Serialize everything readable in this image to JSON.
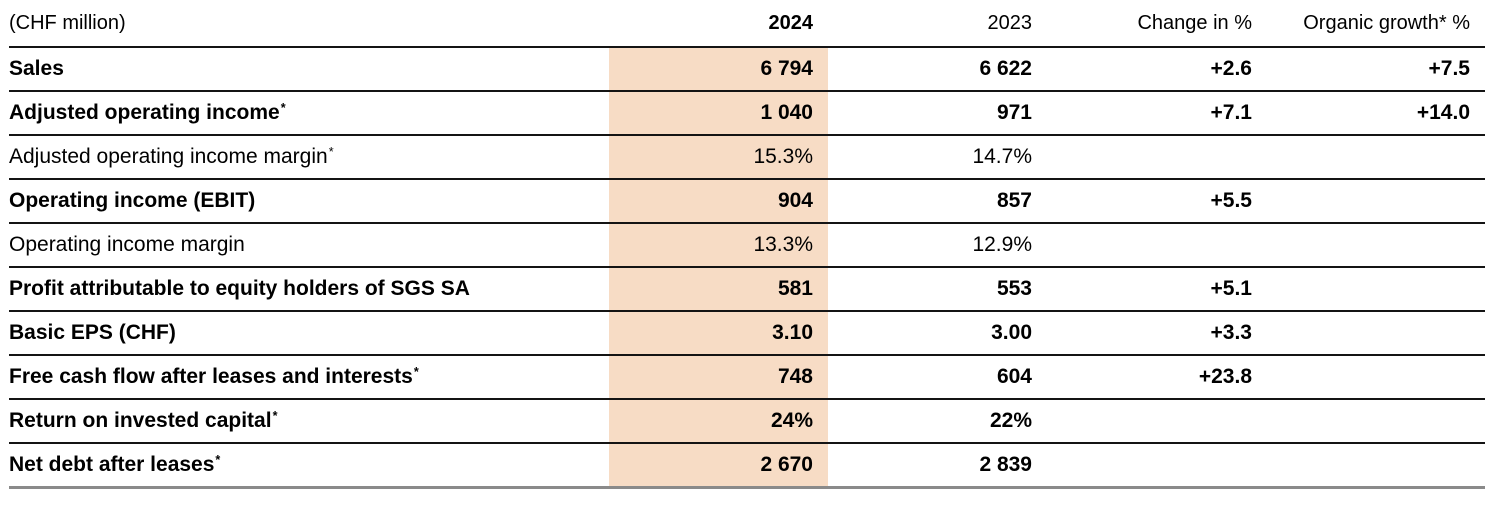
{
  "table": {
    "unit_label": "(CHF million)",
    "columns": {
      "y2024": "2024",
      "y2023": "2023",
      "change": "Change in %",
      "organic": "Organic growth* %"
    },
    "highlight_color": "#f7dcc5",
    "rows": [
      {
        "label": "Sales",
        "bold": true,
        "y2024": "6 794",
        "y2023": "6 622",
        "change": "+2.6",
        "organic": "+7.5"
      },
      {
        "label": "Adjusted operating income*",
        "bold": true,
        "y2024": "1 040",
        "y2023": "971",
        "change": "+7.1",
        "organic": "+14.0"
      },
      {
        "label": "Adjusted operating income margin*",
        "bold": false,
        "y2024": "15.3%",
        "y2023": "14.7%",
        "change": "",
        "organic": ""
      },
      {
        "label": "Operating income (EBIT)",
        "bold": true,
        "y2024": "904",
        "y2023": "857",
        "change": "+5.5",
        "organic": ""
      },
      {
        "label": "Operating income margin",
        "bold": false,
        "y2024": "13.3%",
        "y2023": "12.9%",
        "change": "",
        "organic": ""
      },
      {
        "label": "Profit attributable to equity holders of SGS SA",
        "bold": true,
        "y2024": "581",
        "y2023": "553",
        "change": "+5.1",
        "organic": ""
      },
      {
        "label": "Basic EPS (CHF)",
        "bold": true,
        "y2024": "3.10",
        "y2023": "3.00",
        "change": "+3.3",
        "organic": ""
      },
      {
        "label": "Free cash flow after leases and interests*",
        "bold": true,
        "y2024": "748",
        "y2023": "604",
        "change": "+23.8",
        "organic": ""
      },
      {
        "label": "Return on invested capital*",
        "bold": true,
        "y2024": "24%",
        "y2023": "22%",
        "change": "",
        "organic": ""
      },
      {
        "label": "Net debt after leases*",
        "bold": true,
        "y2024": "2 670",
        "y2023": "2 839",
        "change": "",
        "organic": ""
      }
    ]
  }
}
